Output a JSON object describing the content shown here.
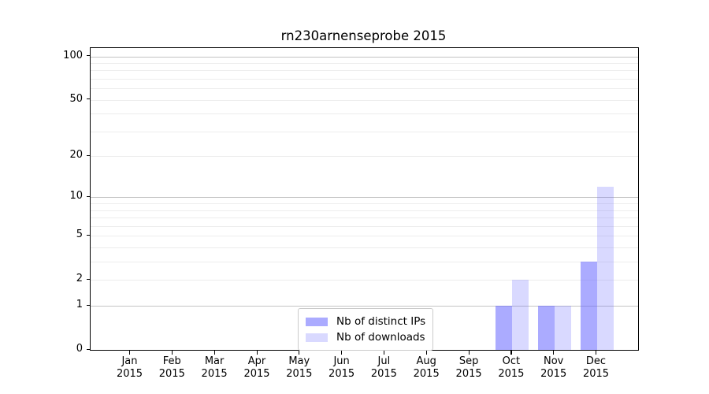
{
  "chart_data": {
    "type": "bar",
    "title": "rn230arnenseprobe 2015",
    "categories": [
      "Jan 2015",
      "Feb 2015",
      "Mar 2015",
      "Apr 2015",
      "May 2015",
      "Jun 2015",
      "Jul 2015",
      "Aug 2015",
      "Sep 2015",
      "Oct 2015",
      "Nov 2015",
      "Dec 2015"
    ],
    "series": [
      {
        "name": "Nb of distinct IPs",
        "color": "rgba(102,102,255,0.55)",
        "values": [
          0,
          0,
          0,
          0,
          0,
          0,
          0,
          0,
          0,
          1,
          1,
          3
        ]
      },
      {
        "name": "Nb of downloads",
        "color": "rgba(102,102,255,0.25)",
        "values": [
          0,
          0,
          0,
          0,
          0,
          0,
          0,
          0,
          0,
          2,
          1,
          12
        ]
      }
    ],
    "yscale": "log1p",
    "ylim": [
      0,
      114
    ],
    "yticks": [
      "0",
      "1",
      "2",
      "5",
      "10",
      "20",
      "50",
      "100"
    ],
    "ytick_values": [
      0,
      1,
      2,
      5,
      10,
      20,
      50,
      100
    ],
    "major_gridlines": [
      1,
      10,
      100
    ],
    "minor_gridlines": [
      2,
      3,
      4,
      5,
      6,
      7,
      8,
      9,
      20,
      30,
      40,
      50,
      60,
      70,
      80,
      90
    ],
    "legend_position": "lower center",
    "grid": "horizontal",
    "colors": {
      "bar_base": "#6666ff",
      "ips_bar_rendered": "#aaaaf8",
      "downloads_bar_rendered": "#d8d8f8",
      "major_grid": "#c3c3c3",
      "minor_grid": "#ededed",
      "axis": "#000000"
    }
  }
}
